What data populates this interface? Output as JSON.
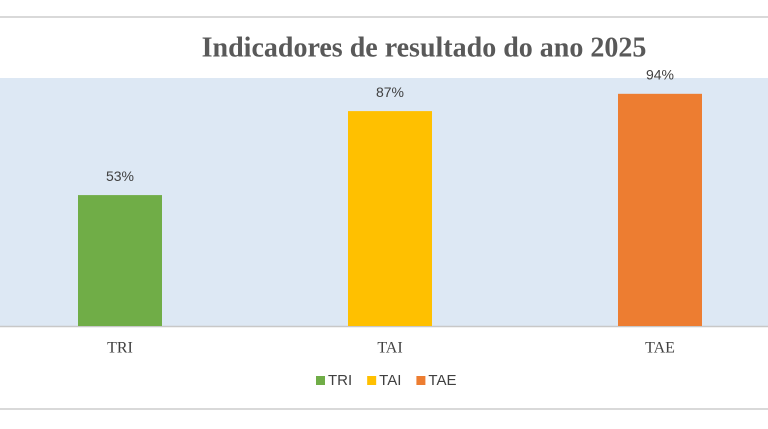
{
  "chart_data": {
    "type": "bar",
    "title": "Indicadores de resultado do ano 2025",
    "categories": [
      "TRI",
      "TAI",
      "TAE"
    ],
    "values": [
      53,
      87,
      94
    ],
    "value_labels": [
      "53%",
      "87%",
      "94%"
    ],
    "colors": [
      "#70ad47",
      "#ffc000",
      "#ed7d31"
    ],
    "ylim": [
      0,
      100
    ],
    "legend": "bottom"
  }
}
